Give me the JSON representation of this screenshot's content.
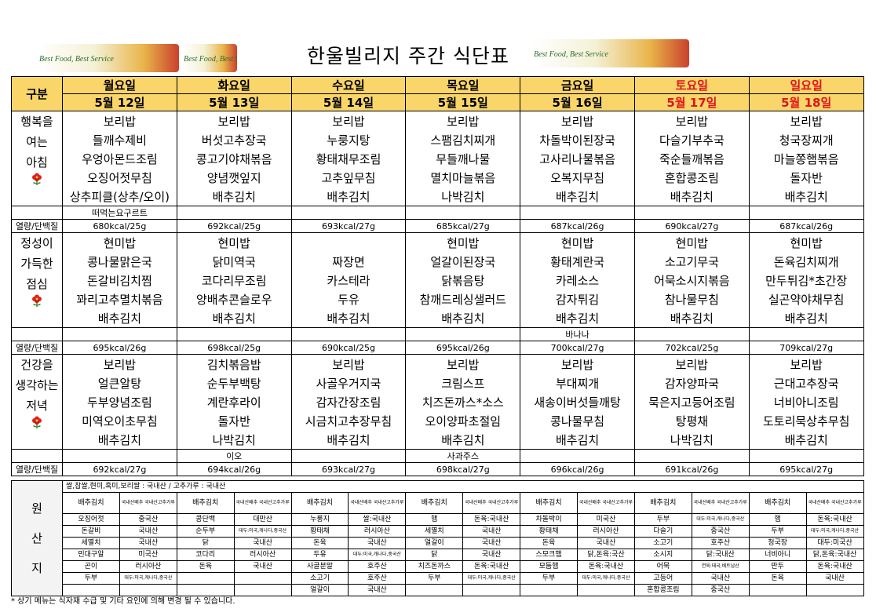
{
  "header": {
    "title": "한울빌리지 주간 식단표",
    "logo_text": "Best Food, Best Service"
  },
  "table": {
    "corner": "구분",
    "days": [
      "월요일",
      "화요일",
      "수요일",
      "목요일",
      "금요일",
      "토요일",
      "일요일"
    ],
    "dates": [
      "5월 12일",
      "5월 13일",
      "5월 14일",
      "5월 15일",
      "5월 16일",
      "5월 17일",
      "5월 18일"
    ],
    "kcal_label": "열량/단백질",
    "meals": [
      {
        "labels": [
          "행복을",
          "여는",
          "아침"
        ],
        "rows": [
          [
            "보리밥",
            "보리밥",
            "보리밥",
            "보리밥",
            "보리밥",
            "보리밥",
            "보리밥"
          ],
          [
            "들깨수제비",
            "버섯고추장국",
            "누룽지탕",
            "스팸김치찌개",
            "차돌박이된장국",
            "다슬기부추국",
            "청국장찌개"
          ],
          [
            "우엉아몬드조림",
            "콩고기야채볶음",
            "황태채무조림",
            "무들깨나물",
            "고사리나물볶음",
            "죽순들깨볶음",
            "마늘쫑햄볶음"
          ],
          [
            "오징어젓무침",
            "양념깻잎지",
            "고추잎무침",
            "멸치마늘볶음",
            "오복지무침",
            "혼합콩조림",
            "돌자반"
          ],
          [
            "상추피클(상추/오이)",
            "배추김치",
            "배추김치",
            "나박김치",
            "배추김치",
            "배추김치",
            "배추김치"
          ]
        ],
        "extra": [
          "떠먹는요구르트",
          null,
          null,
          null,
          null,
          null,
          null
        ],
        "kcal": [
          "680kcal/25g",
          "692kcal/25g",
          "693kcal/27g",
          "685kcal/27g",
          "687kcal/26g",
          "690kcal/27g",
          "687kcal/26g"
        ]
      },
      {
        "labels": [
          "정성이",
          "가득한",
          "점심"
        ],
        "rows": [
          [
            "현미밥",
            "현미밥",
            null,
            "현미밥",
            "현미밥",
            "현미밥",
            "현미밥"
          ],
          [
            "콩나물맑은국",
            "닭미역국",
            "짜장면",
            "얼갈이된장국",
            "황태계란국",
            "소고기무국",
            "돈육김치찌개"
          ],
          [
            "돈갈비김치찜",
            "코다리무조림",
            "카스테라",
            "닭볶음탕",
            "카레소스",
            "어묵소시지볶음",
            "만두튀김*초간장"
          ],
          [
            "꽈리고추멸치볶음",
            "양배추콘슬로우",
            "두유",
            "참깨드레싱샐러드",
            "감자튀김",
            "참나물무침",
            "실곤약야채무침"
          ],
          [
            "배추김치",
            "배추김치",
            "배추김치",
            "배추김치",
            "배추김치",
            "배추김치",
            "배추김치"
          ]
        ],
        "extra": [
          null,
          null,
          null,
          null,
          "바나나",
          null,
          null
        ],
        "kcal": [
          "695kcal/26g",
          "698kcal/25g",
          "690kcal/25g",
          "695kcal/26g",
          "700kcal/27g",
          "702kcal/25g",
          "709kcal/27g"
        ]
      },
      {
        "labels": [
          "건강을",
          "생각하는",
          "저녁"
        ],
        "rows": [
          [
            "보리밥",
            "김치볶음밥",
            "보리밥",
            "보리밥",
            "보리밥",
            "보리밥",
            "보리밥"
          ],
          [
            "얼큰알탕",
            "순두부백탕",
            "사골우거지국",
            "크림스프",
            "부대찌개",
            "감자양파국",
            "근대고추장국"
          ],
          [
            "두부양념조림",
            "계란후라이",
            "감자간장조림",
            "치즈돈까스*소스",
            "새송이버섯들깨탕",
            "묵은지고등어조림",
            "너비아니조림"
          ],
          [
            "미역오이초무침",
            "돌자반",
            "시금치고추장무침",
            "오이양파초절임",
            "콩나물무침",
            "탕평채",
            "도토리묵상추무침"
          ],
          [
            "배추김치",
            "나박김치",
            "배추김치",
            "배추김치",
            "배추김치",
            "나박김치",
            "배추김치"
          ]
        ],
        "extra": [
          null,
          "이오",
          null,
          "사과주스",
          null,
          null,
          null
        ],
        "kcal": [
          "692kcal/27g",
          "694kcal/26g",
          "693kcal/27g",
          "698kcal/27g",
          "696kcal/26g",
          "691kcal/26g",
          "695kcal/27g"
        ]
      }
    ]
  },
  "origin": {
    "labels": [
      "원",
      "산",
      "지"
    ],
    "note": "쌀,찹쌀,현미,흑미,보리쌀 : 국내산 / 고추가루 : 국내산",
    "rows": [
      [
        "배추김치",
        "국내산배추 국내산고추가루",
        "배추김치",
        "국내산배추 국내산고추가루",
        "배추김치",
        "국내산배추 국내산고추가루",
        "배추김치",
        "국내산배추 국내산고추가루",
        "배추김치",
        "국내산배추 국내산고추가루",
        "배추김치",
        "국내산배추 국내산고추가루",
        "배추김치",
        "국내산배추 국내산고추가루"
      ],
      [
        "오징어젓",
        "중국산",
        "콩단백",
        "대만산",
        "누룽지",
        "쌀:국내산",
        "햄",
        "돈육:국내산",
        "차돌박이",
        "미국산",
        "두부",
        "대두:미국,캐나다,중국산",
        "햄",
        "돈육:국내산"
      ],
      [
        "돈갈비",
        "국내산",
        "순두부",
        "대두:미국,캐나다,중국산",
        "황태채",
        "러시아산",
        "세멸치",
        "국내산",
        "황태채",
        "러시아산",
        "다슬기",
        "중국산",
        "두부",
        "대두:미국,캐나다,중국산"
      ],
      [
        "세멸치",
        "국내산",
        "닭",
        "국내산",
        "돈육",
        "국내산",
        "얼갈이",
        "국내산",
        "돈육",
        "국내산",
        "소고기",
        "호주산",
        "청국장",
        "대두:미국산"
      ],
      [
        "민대구알",
        "미국산",
        "코다리",
        "러시아산",
        "두유",
        "대두:미국,캐나다,중국산",
        "닭",
        "국내산",
        "스모크햄",
        "닭,돈육:국산",
        "소시지",
        "닭:국내산",
        "너비아니",
        "닭,돈육:국내산"
      ],
      [
        "곤이",
        "러시아산",
        "돈육",
        "국내산",
        "사골분말",
        "호주산",
        "치즈돈까스",
        "돈육:국내산",
        "모둠햄",
        "돈육:국내산",
        "어묵",
        "연육:태국,베트남산",
        "만두",
        "돈육:국내산"
      ],
      [
        "두부",
        "대두:미국,캐나다,중국산",
        null,
        null,
        "소고기",
        "호주산",
        "두부",
        "대두:미국,캐나다,중국산",
        "두부",
        "대두:미국,캐나다,중국산",
        "고등어",
        "국내산",
        "돈육",
        "국내산"
      ],
      [
        null,
        null,
        null,
        null,
        "얼갈이",
        "국내산",
        null,
        null,
        null,
        null,
        "혼합콩조림",
        "중국산",
        null,
        null
      ]
    ]
  },
  "footer": "* 상기 메뉴는 식자재 수급 및 기타 요인에 의해 변경 될 수 있습니다."
}
